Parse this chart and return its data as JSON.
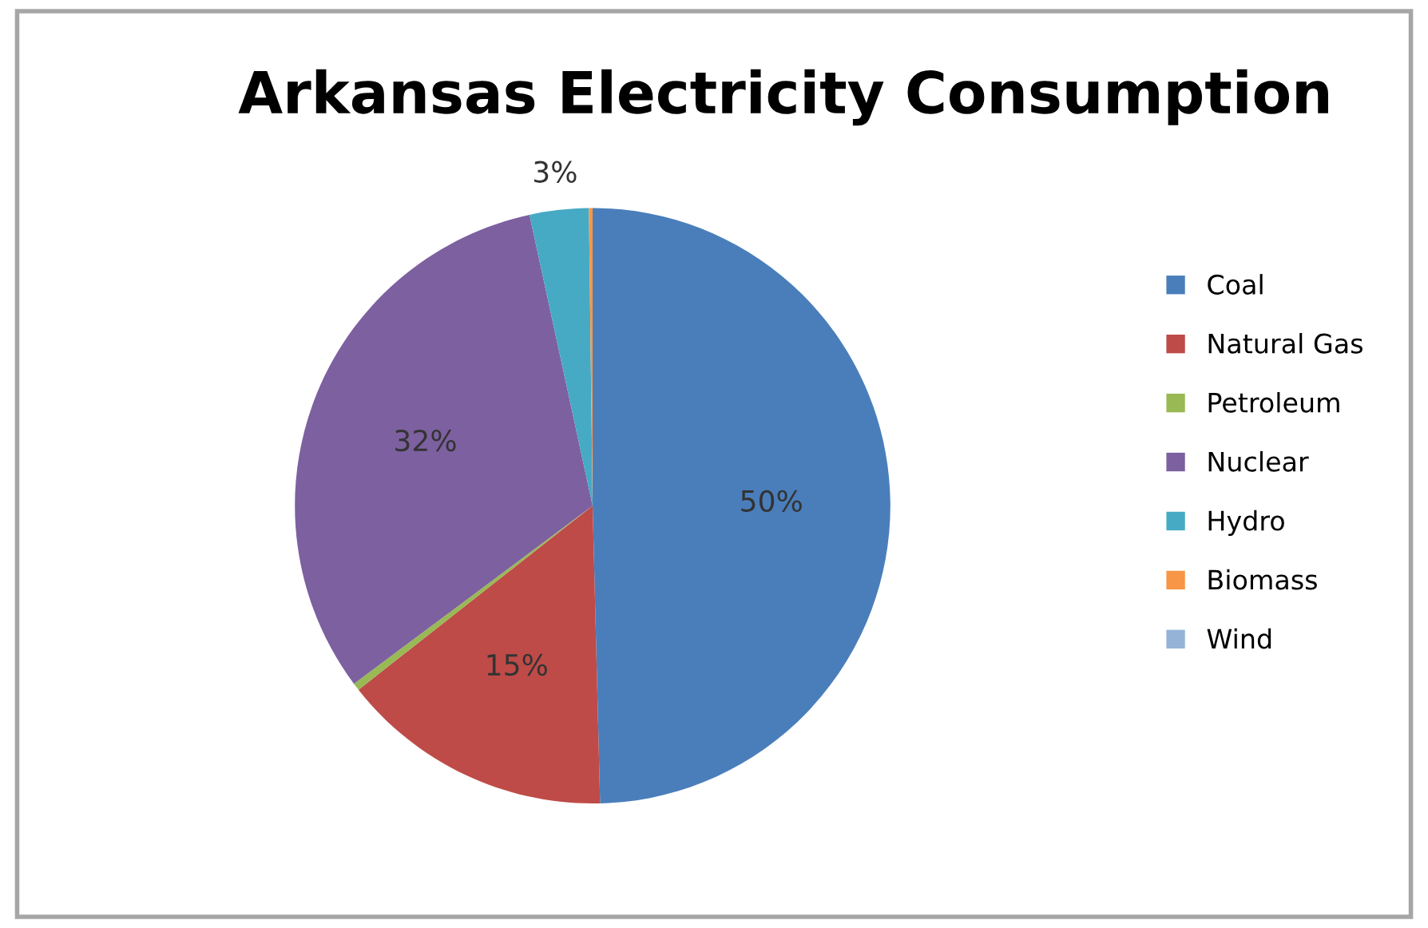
{
  "chart_data": {
    "type": "pie",
    "title": "Arkansas Electricity Consumption",
    "categories": [
      "Coal",
      "Natural Gas",
      "Petroleum",
      "Nuclear",
      "Hydro",
      "Biomass",
      "Wind"
    ],
    "values": [
      49.6,
      14.8,
      0.4,
      31.8,
      3.2,
      0.2,
      0
    ],
    "value_labels": [
      "50%",
      "15%",
      null,
      "32%",
      "3%",
      null,
      null
    ],
    "colors": [
      "#4a7ebb",
      "#be4b48",
      "#98b954",
      "#7d60a0",
      "#46aac5",
      "#f79646",
      "#95b3d7"
    ],
    "legend": "right"
  }
}
